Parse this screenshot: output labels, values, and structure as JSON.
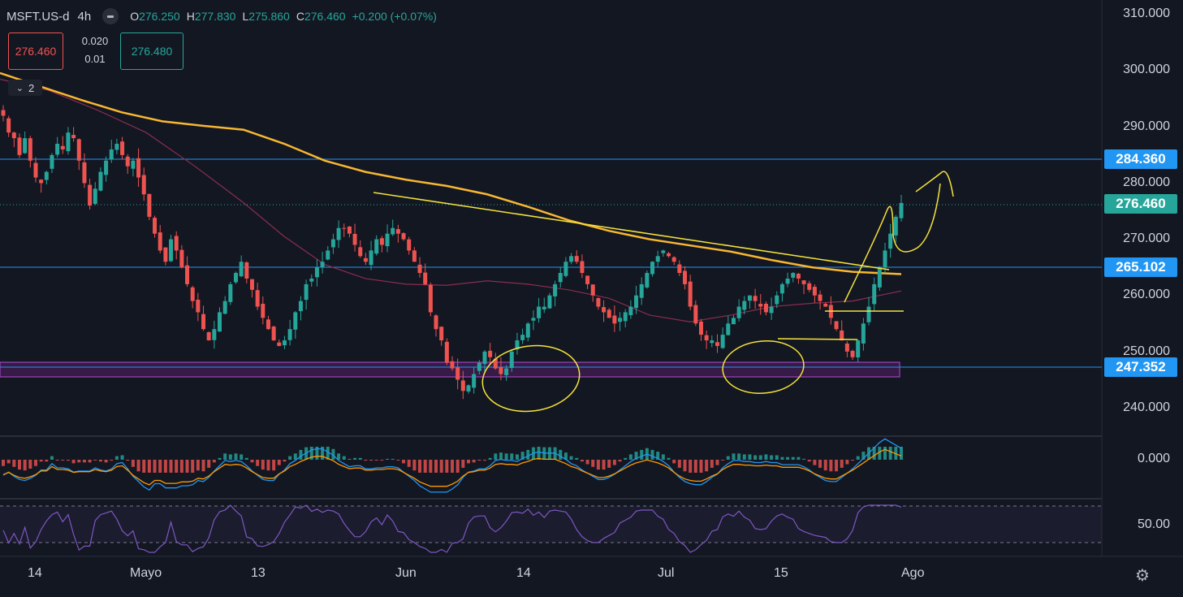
{
  "header": {
    "symbol": "MSFT.US-d",
    "timeframe": "4h",
    "open_label": "O",
    "open": "276.250",
    "high_label": "H",
    "high": "277.830",
    "low_label": "L",
    "low": "275.860",
    "close_label": "C",
    "close": "276.460",
    "change": "+0.200 (+0.07%)"
  },
  "trade": {
    "sell": "276.460",
    "spread": "0.020",
    "lot": "0.01",
    "buy": "276.480"
  },
  "indicators_toggle": {
    "icon": "chevron-down-icon",
    "count": "2"
  },
  "price_axis": [
    "310.000",
    "300.000",
    "290.000",
    "280.000",
    "270.000",
    "260.000",
    "250.000",
    "240.000"
  ],
  "price_labels": {
    "resistance": {
      "text": "284.360",
      "color": "#2196f3"
    },
    "current": {
      "text": "276.460",
      "color": "#26a69a"
    },
    "support1": {
      "text": "265.102",
      "color": "#2196f3"
    },
    "support2": {
      "text": "247.352",
      "color": "#2196f3"
    }
  },
  "macd_axis": "0.000",
  "rsi_axis": "50.00",
  "time_axis": [
    "14",
    "Mayo",
    "13",
    "Jun",
    "14",
    "Jul",
    "15",
    "Ago"
  ],
  "colors": {
    "up": "#26a69a",
    "down": "#ef5350",
    "ma_long": "#f7b731",
    "ma_short": "#8b2d4e",
    "drawings": "#f5e33a",
    "zone": "#9c27b0",
    "rsi": "#7e57c2"
  },
  "chart_data": {
    "type": "candlestick",
    "x_ticks": [
      "14",
      "Mayo",
      "13",
      "Jun",
      "14",
      "Jul",
      "15",
      "Ago"
    ],
    "ylim": [
      235,
      312
    ],
    "levels": [
      284.36,
      265.102,
      247.352
    ],
    "support_zone": [
      246.2,
      248.8
    ],
    "moving_average_long": [
      [
        0,
        299.6
      ],
      [
        50,
        297.2
      ],
      [
        100,
        294.8
      ],
      [
        150,
        292.6
      ],
      [
        200,
        291.0
      ],
      [
        250,
        290.2
      ],
      [
        300,
        289.5
      ],
      [
        350,
        287.0
      ],
      [
        400,
        284.0
      ],
      [
        450,
        282.0
      ],
      [
        500,
        280.6
      ],
      [
        550,
        279.5
      ],
      [
        600,
        278.0
      ],
      [
        650,
        275.8
      ],
      [
        700,
        273.4
      ],
      [
        750,
        271.5
      ],
      [
        800,
        270.0
      ],
      [
        850,
        268.9
      ],
      [
        900,
        267.8
      ],
      [
        950,
        266.3
      ],
      [
        1000,
        265.0
      ],
      [
        1050,
        264.2
      ],
      [
        1110,
        263.8
      ]
    ],
    "moving_average_short": [
      [
        0,
        298.5
      ],
      [
        60,
        296.5
      ],
      [
        120,
        293.0
      ],
      [
        180,
        289.0
      ],
      [
        240,
        283.0
      ],
      [
        300,
        276.5
      ],
      [
        350,
        270.5
      ],
      [
        400,
        265.5
      ],
      [
        450,
        263.0
      ],
      [
        500,
        262.0
      ],
      [
        550,
        261.8
      ],
      [
        600,
        262.6
      ],
      [
        650,
        262.0
      ],
      [
        700,
        261.0
      ],
      [
        750,
        259.5
      ],
      [
        800,
        256.5
      ],
      [
        850,
        255.3
      ],
      [
        900,
        256.5
      ],
      [
        950,
        258.0
      ],
      [
        1000,
        258.6
      ],
      [
        1050,
        259.0
      ],
      [
        1110,
        260.8
      ]
    ],
    "candles_closing": [
      292,
      289,
      288,
      285,
      288,
      284,
      281,
      280,
      282,
      285,
      287,
      286,
      289,
      288,
      284,
      280,
      276,
      279,
      282,
      284,
      286,
      287,
      285,
      283,
      284,
      281,
      278,
      274,
      271,
      268,
      266,
      270,
      268,
      265,
      262,
      259,
      257,
      254,
      252,
      254,
      257,
      259,
      262,
      264,
      266,
      263,
      261,
      258,
      256,
      254,
      252,
      251,
      252,
      254,
      257,
      259,
      262,
      263,
      265,
      266,
      268,
      270,
      272,
      272,
      271,
      269,
      267,
      266,
      268,
      270,
      269,
      271,
      272,
      271,
      270,
      268,
      266,
      264,
      262,
      257,
      254,
      252,
      248,
      247,
      245,
      243,
      244,
      246,
      248,
      250,
      249,
      247,
      246,
      247,
      250,
      252,
      253,
      255,
      256,
      258,
      258,
      260,
      262,
      264,
      266,
      267,
      266,
      264,
      262,
      260,
      258,
      257,
      256,
      255,
      256,
      257,
      258,
      260,
      262,
      264,
      266,
      267,
      268,
      267,
      266,
      264,
      262,
      258,
      255,
      253,
      252,
      252,
      251,
      253,
      255,
      256,
      258,
      259,
      260,
      259,
      258,
      257,
      258,
      260,
      262,
      263,
      264,
      263,
      262,
      261,
      260,
      259,
      258,
      256,
      254,
      252,
      250,
      249,
      252,
      255,
      258,
      262,
      265,
      268,
      271,
      274,
      276.46
    ]
  }
}
